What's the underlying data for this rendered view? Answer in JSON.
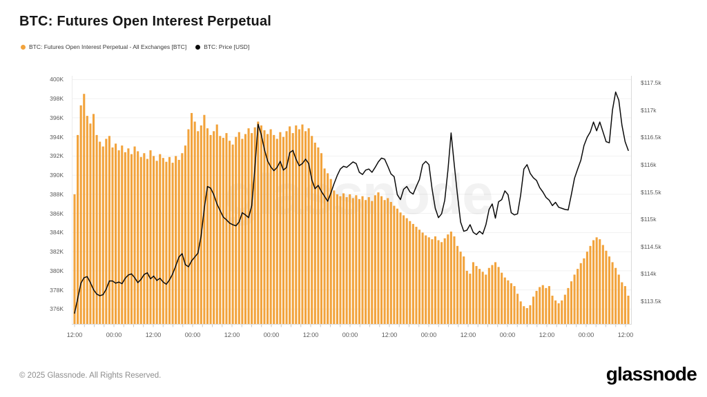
{
  "title": "BTC: Futures Open Interest Perpetual",
  "legend": [
    {
      "label": "BTC: Futures Open Interest Perpetual - All Exchanges [BTC]",
      "color": "#F2A33C"
    },
    {
      "label": "BTC: Price [USD]",
      "color": "#0a0a0a"
    }
  ],
  "watermark": "glassnode",
  "footer": {
    "copyright": "© 2025 Glassnode. All Rights Reserved.",
    "brand": "glassnode"
  },
  "chart_data": {
    "type": "bar",
    "title": "BTC: Futures Open Interest Perpetual",
    "grid": "horizontal",
    "legend_position": "top-left",
    "x_axis": {
      "tick_labels": [
        "12:00",
        "00:00",
        "12:00",
        "00:00",
        "12:00",
        "00:00",
        "12:00",
        "00:00",
        "12:00",
        "00:00",
        "12:00",
        "00:00",
        "12:00",
        "00:00",
        "12:00"
      ]
    },
    "left_axis": {
      "tick_labels": [
        "400K",
        "398K",
        "396K",
        "394K",
        "392K",
        "390K",
        "388K",
        "386K",
        "384K",
        "382K",
        "380K",
        "378K",
        "376K"
      ],
      "tick_values": [
        400,
        398,
        396,
        394,
        392,
        390,
        388,
        386,
        384,
        382,
        380,
        378,
        376
      ],
      "unit": "thousand BTC"
    },
    "right_axis": {
      "tick_labels": [
        "$117.5k",
        "$117k",
        "$116.5k",
        "$116k",
        "$115.5k",
        "$115k",
        "$114.5k",
        "$114k",
        "$113.5k"
      ],
      "tick_values": [
        117.5,
        117,
        116.5,
        116,
        115.5,
        115,
        114.5,
        114,
        113.5
      ],
      "unit": "USD thousands"
    },
    "series": [
      {
        "name": "BTC: Futures Open Interest Perpetual - All Exchanges [BTC]",
        "type": "bar",
        "axis": "left",
        "color": "#F2A33C",
        "unit": "K BTC",
        "values": [
          388.0,
          394.2,
          397.3,
          398.5,
          396.2,
          395.4,
          396.4,
          394.2,
          393.5,
          393.0,
          393.8,
          394.1,
          392.9,
          393.3,
          392.6,
          393.1,
          392.4,
          392.8,
          392.2,
          393.0,
          392.5,
          391.9,
          392.3,
          391.7,
          392.6,
          392.0,
          391.5,
          392.2,
          391.8,
          391.4,
          391.9,
          391.3,
          392.0,
          391.6,
          392.3,
          393.1,
          394.8,
          396.5,
          395.6,
          394.6,
          395.2,
          396.3,
          394.9,
          394.2,
          394.6,
          395.3,
          394.1,
          393.9,
          394.4,
          393.6,
          393.2,
          394.0,
          394.5,
          393.8,
          394.3,
          394.9,
          394.4,
          395.0,
          395.6,
          395.2,
          394.7,
          394.3,
          394.8,
          394.2,
          393.8,
          394.5,
          394.0,
          394.6,
          395.1,
          394.4,
          395.2,
          394.8,
          395.3,
          394.6,
          394.9,
          394.1,
          393.4,
          392.9,
          392.3,
          390.7,
          390.2,
          389.6,
          388.4,
          388.0,
          387.8,
          388.1,
          387.7,
          388.0,
          387.6,
          387.9,
          387.5,
          387.8,
          387.4,
          387.7,
          387.3,
          387.9,
          388.2,
          387.8,
          387.4,
          387.6,
          387.2,
          386.8,
          386.5,
          386.1,
          385.8,
          385.5,
          385.2,
          384.9,
          384.6,
          384.3,
          384.0,
          383.7,
          383.5,
          383.3,
          383.6,
          383.2,
          383.0,
          383.4,
          383.8,
          384.1,
          383.6,
          382.6,
          382.0,
          381.5,
          380.0,
          379.7,
          380.9,
          380.5,
          380.2,
          379.9,
          379.6,
          380.3,
          380.6,
          380.9,
          380.4,
          379.8,
          379.3,
          379.0,
          378.7,
          378.4,
          377.6,
          376.8,
          376.3,
          376.1,
          376.4,
          377.3,
          377.9,
          378.3,
          378.5,
          378.2,
          378.4,
          377.4,
          376.9,
          376.6,
          376.9,
          377.5,
          378.2,
          378.9,
          379.6,
          380.2,
          380.8,
          381.3,
          382.0,
          382.6,
          383.2,
          383.5,
          383.3,
          382.7,
          382.1,
          381.5,
          380.9,
          380.3,
          379.6,
          378.8,
          378.4,
          377.4
        ]
      },
      {
        "name": "BTC: Price [USD]",
        "type": "line",
        "axis": "right",
        "color": "#0a0a0a",
        "unit": "$k",
        "values": [
          113.28,
          113.55,
          113.83,
          113.93,
          113.95,
          113.84,
          113.71,
          113.63,
          113.6,
          113.62,
          113.72,
          113.87,
          113.87,
          113.83,
          113.85,
          113.82,
          113.92,
          113.98,
          114.0,
          113.93,
          113.84,
          113.9,
          113.99,
          114.02,
          113.91,
          113.96,
          113.88,
          113.92,
          113.85,
          113.81,
          113.89,
          114.0,
          114.15,
          114.31,
          114.37,
          114.17,
          114.13,
          114.24,
          114.31,
          114.38,
          114.7,
          115.2,
          115.6,
          115.57,
          115.45,
          115.28,
          115.16,
          115.04,
          114.99,
          114.93,
          114.9,
          114.88,
          114.95,
          115.12,
          115.08,
          115.03,
          115.25,
          115.95,
          116.74,
          116.55,
          116.28,
          116.07,
          115.96,
          115.89,
          115.95,
          116.06,
          115.9,
          115.95,
          116.22,
          116.26,
          116.1,
          115.98,
          116.02,
          116.1,
          116.02,
          115.72,
          115.56,
          115.62,
          115.51,
          115.42,
          115.33,
          115.48,
          115.65,
          115.8,
          115.92,
          115.97,
          115.95,
          116.0,
          116.05,
          116.02,
          115.86,
          115.82,
          115.9,
          115.92,
          115.86,
          115.95,
          116.05,
          116.12,
          116.1,
          115.97,
          115.83,
          115.78,
          115.45,
          115.36,
          115.55,
          115.6,
          115.5,
          115.46,
          115.6,
          115.73,
          116.0,
          116.06,
          116.0,
          115.55,
          115.2,
          115.03,
          115.1,
          115.35,
          115.9,
          116.58,
          116.0,
          115.45,
          114.95,
          114.78,
          114.8,
          114.9,
          114.76,
          114.72,
          114.78,
          114.73,
          114.9,
          115.18,
          115.28,
          115.02,
          115.32,
          115.36,
          115.52,
          115.45,
          115.12,
          115.08,
          115.1,
          115.45,
          115.92,
          116.0,
          115.84,
          115.76,
          115.71,
          115.58,
          115.5,
          115.4,
          115.35,
          115.25,
          115.31,
          115.22,
          115.2,
          115.18,
          115.17,
          115.45,
          115.75,
          115.92,
          116.08,
          116.35,
          116.5,
          116.6,
          116.78,
          116.62,
          116.78,
          116.6,
          116.42,
          116.4,
          117.0,
          117.33,
          117.18,
          116.72,
          116.42,
          116.26
        ]
      }
    ]
  }
}
